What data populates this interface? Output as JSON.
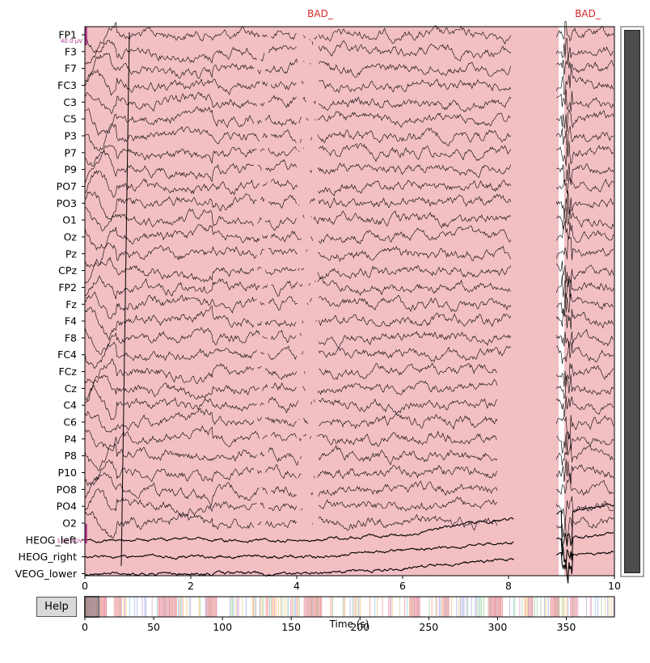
{
  "window": {
    "title": ""
  },
  "annotations": [
    {
      "label": "BAD_",
      "onset": 0.0,
      "offset": 8.95
    },
    {
      "label": "BAD_",
      "onset": 9.05,
      "offset": 10.0
    }
  ],
  "channels": [
    "FP1",
    "F3",
    "F7",
    "FC3",
    "C3",
    "C5",
    "P3",
    "P7",
    "P9",
    "PO7",
    "PO3",
    "O1",
    "Oz",
    "Pz",
    "CPz",
    "FP2",
    "Fz",
    "F4",
    "F8",
    "FC4",
    "FCz",
    "Cz",
    "C4",
    "C6",
    "P4",
    "P8",
    "P10",
    "PO8",
    "PO4",
    "O2",
    "HEOG_left",
    "HEOG_right",
    "VEOG_lower"
  ],
  "scale_labels": {
    "eeg": "40.0 µV",
    "eog": "150.0 µV"
  },
  "main_axis": {
    "xlim": [
      0,
      10
    ],
    "ticks": [
      "0",
      "2",
      "4",
      "6",
      "8",
      "10"
    ]
  },
  "overview": {
    "xlim": [
      0,
      385
    ],
    "ticks": [
      "0",
      "50",
      "100",
      "150",
      "200",
      "250",
      "300",
      "350"
    ],
    "xlabel": "Time (s)",
    "view_window": [
      0,
      10
    ]
  },
  "help_button": {
    "label": "Help"
  },
  "colors": {
    "annotation_fill": "#f2bfc3",
    "annotation_label": "#d62728",
    "trace": "#000000",
    "scale_bar": "#b1348b",
    "scrollbar_thumb": "#4d4d4d"
  }
}
